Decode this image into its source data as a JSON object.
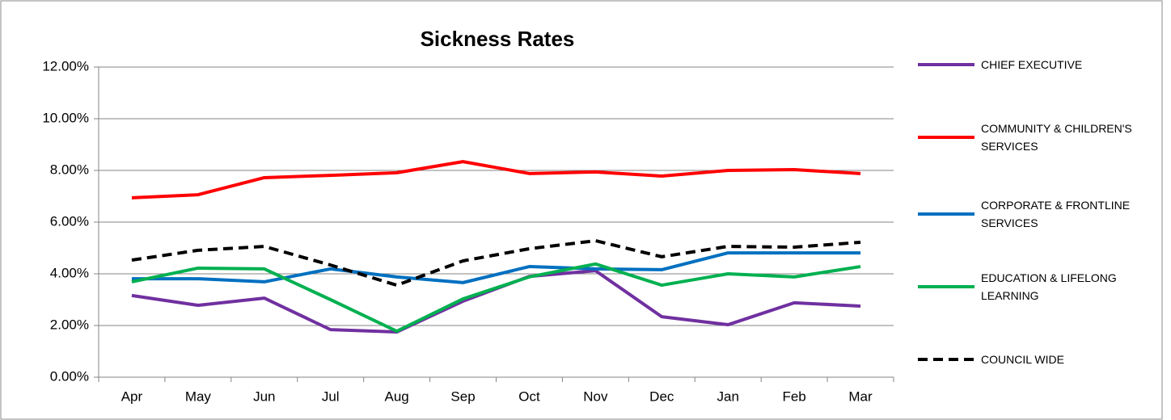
{
  "chart_data": {
    "type": "line",
    "title": "Sickness Rates",
    "categories": [
      "Apr",
      "May",
      "Jun",
      "Jul",
      "Aug",
      "Sep",
      "Oct",
      "Nov",
      "Dec",
      "Jan",
      "Feb",
      "Mar"
    ],
    "ylim": [
      0,
      12
    ],
    "yticks": [
      {
        "value": 0,
        "label": "0.00%"
      },
      {
        "value": 2,
        "label": "2.00%"
      },
      {
        "value": 4,
        "label": "4.00%"
      },
      {
        "value": 6,
        "label": "6.00%"
      },
      {
        "value": 8,
        "label": "8.00%"
      },
      {
        "value": 10,
        "label": "10.00%"
      },
      {
        "value": 12,
        "label": "12.00%"
      }
    ],
    "grid": true,
    "legend": "right",
    "series": [
      {
        "name": "CHIEF EXECUTIVE",
        "color": "#7030a0",
        "line_style": "solid",
        "values": [
          3.16,
          2.78,
          3.06,
          1.84,
          1.75,
          2.94,
          3.9,
          4.12,
          2.34,
          2.03,
          2.88,
          2.75
        ]
      },
      {
        "name": "COMMUNITY & CHILDREN'S SERVICES",
        "color": "#ff0000",
        "line_style": "solid",
        "values": [
          6.94,
          7.06,
          7.72,
          7.81,
          7.91,
          8.34,
          7.88,
          7.94,
          7.78,
          8.0,
          8.03,
          7.88
        ]
      },
      {
        "name": "CORPORATE & FRONTLINE SERVICES",
        "color": "#0070c0",
        "line_style": "solid",
        "values": [
          3.81,
          3.81,
          3.69,
          4.19,
          3.88,
          3.66,
          4.28,
          4.19,
          4.16,
          4.81,
          4.81,
          4.81
        ]
      },
      {
        "name": "EDUCATION & LIFELONG LEARNING",
        "color": "#00b050",
        "line_style": "solid",
        "values": [
          3.69,
          4.22,
          4.19,
          3.0,
          1.78,
          3.03,
          3.88,
          4.38,
          3.56,
          4.0,
          3.88,
          4.28
        ]
      },
      {
        "name": "COUNCIL WIDE",
        "color": "#000000",
        "line_style": "dashed",
        "values": [
          4.53,
          4.91,
          5.06,
          4.34,
          3.56,
          4.5,
          4.97,
          5.28,
          4.66,
          5.06,
          5.03,
          5.22
        ]
      }
    ]
  }
}
